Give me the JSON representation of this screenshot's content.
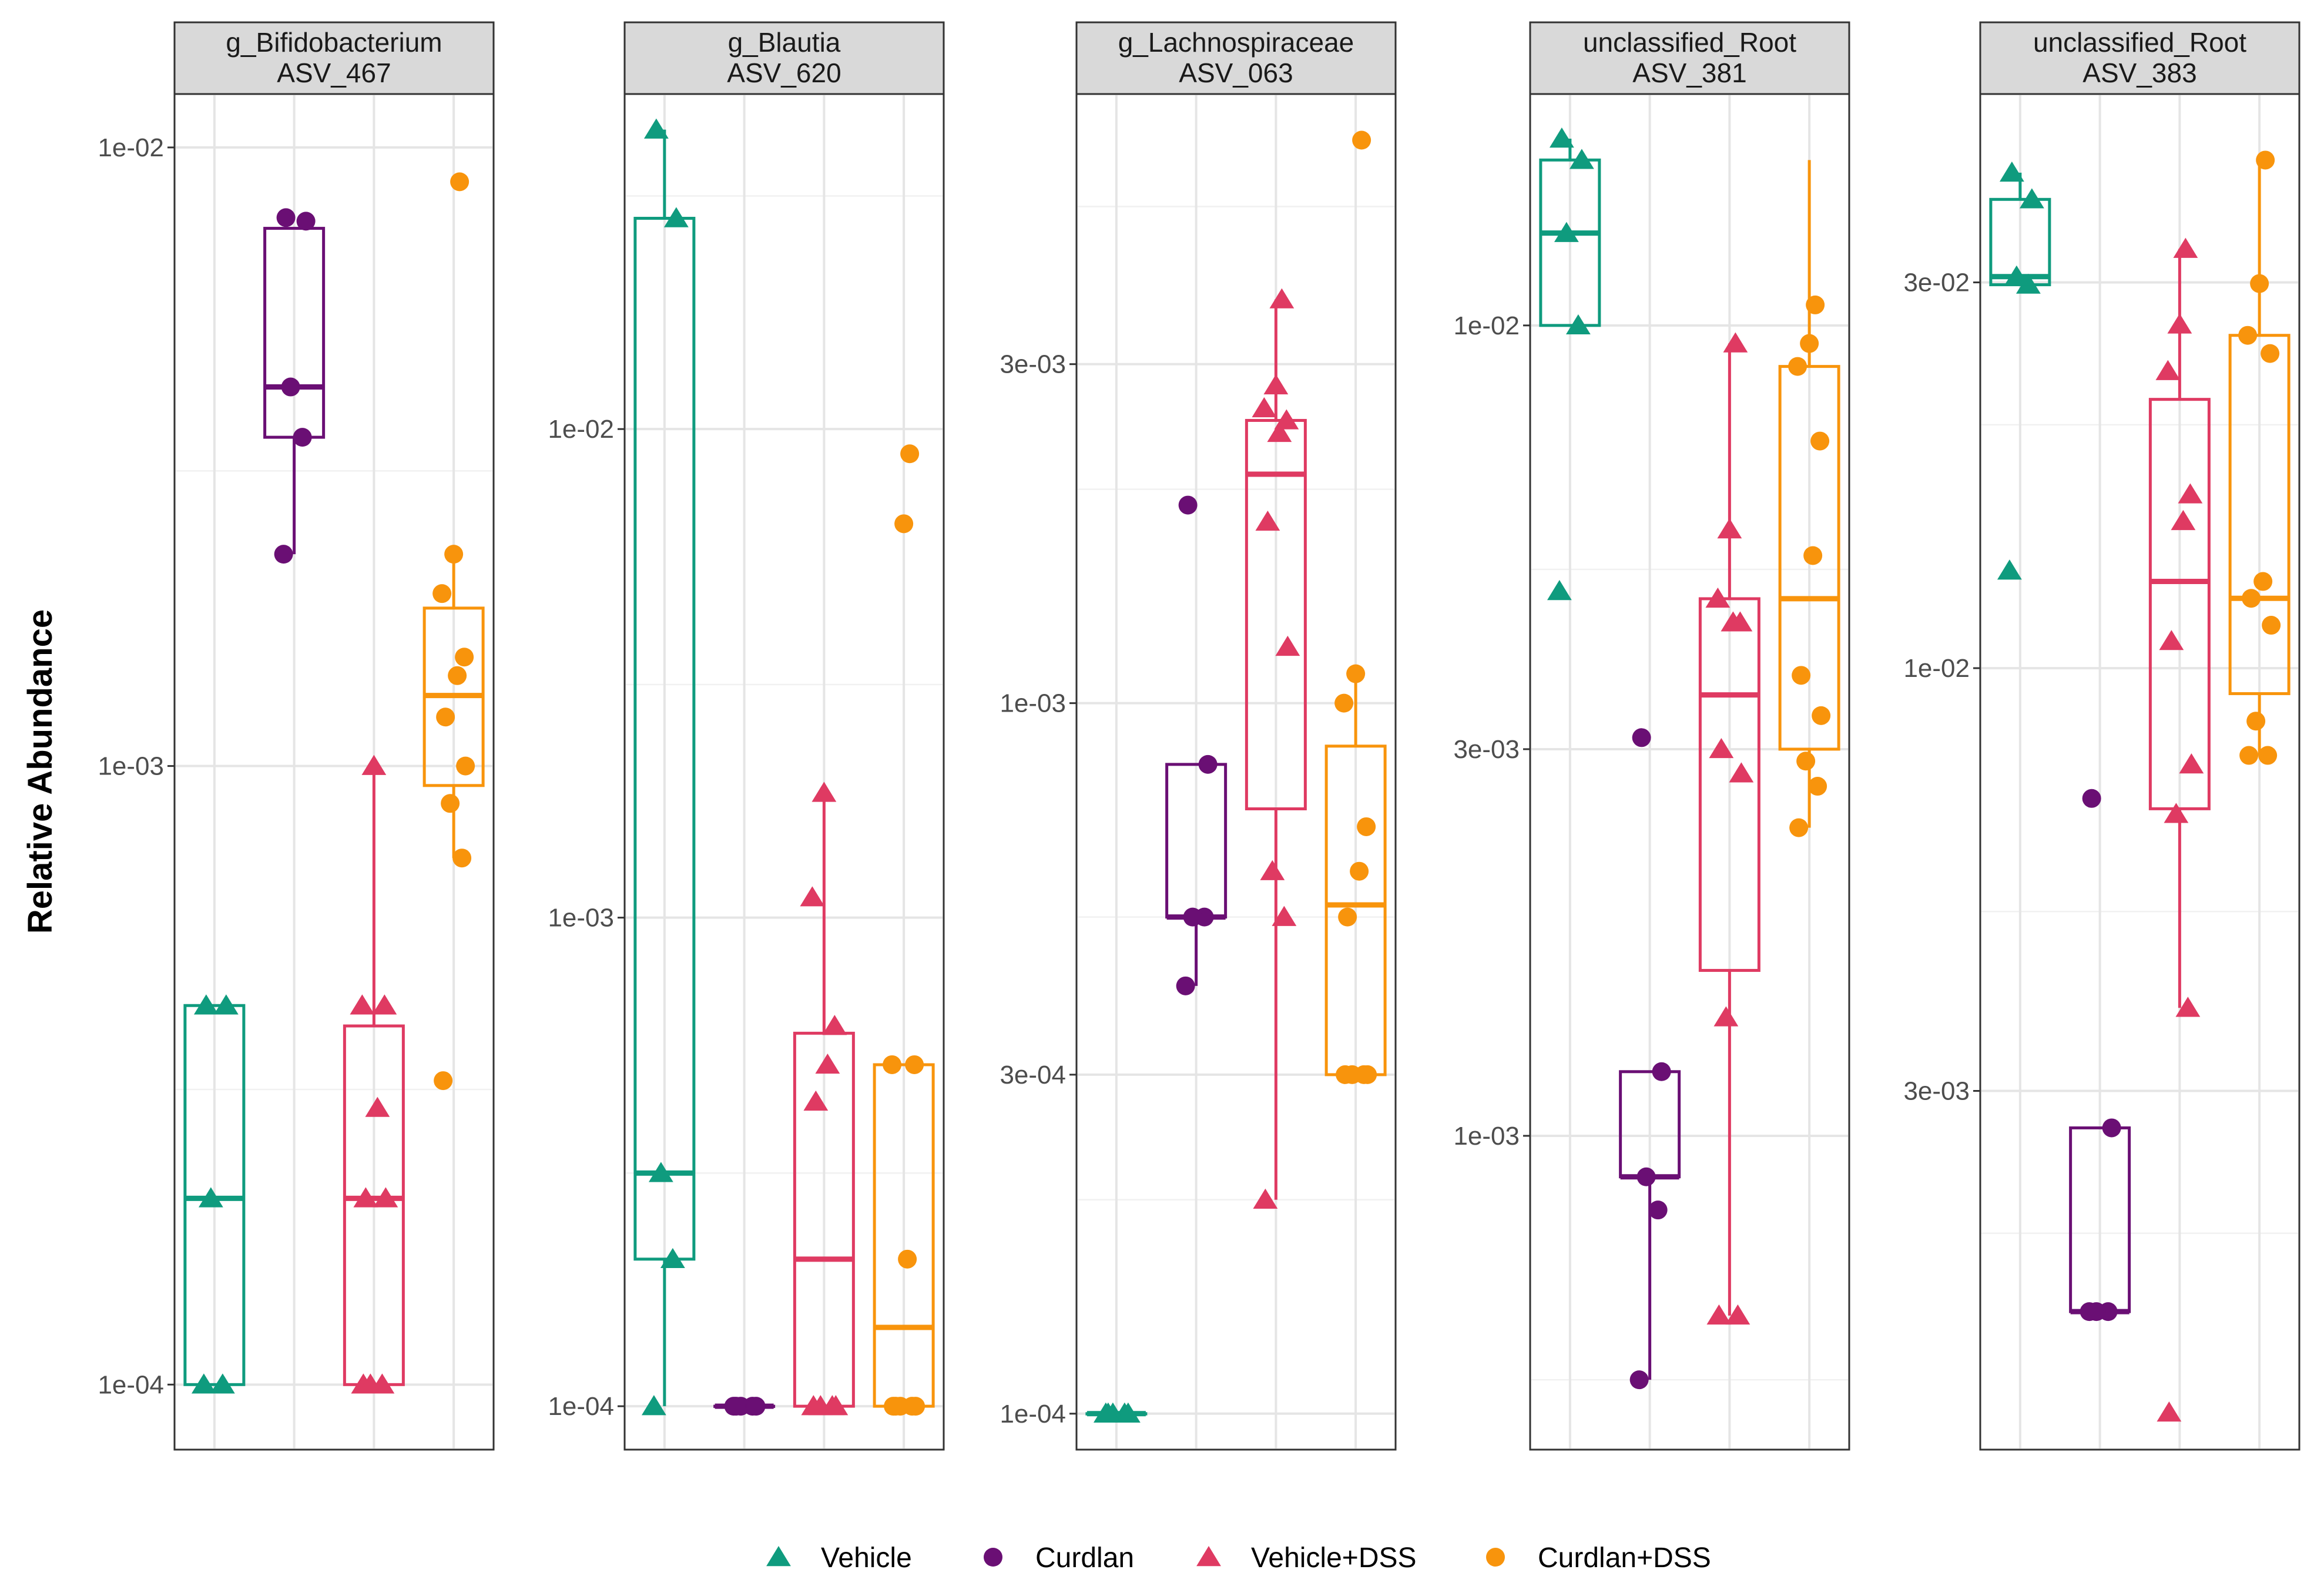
{
  "chart_data": {
    "type": "boxplot",
    "ylabel": "Relative Abundance",
    "yscale": "log10",
    "groups": [
      "Vehicle",
      "Curdlan",
      "Vehicle+DSS",
      "Curdlan+DSS"
    ],
    "colors": {
      "Vehicle": "#0f9b7e",
      "Curdlan": "#6a0f74",
      "Vehicle+DSS": "#df3a62",
      "Curdlan+DSS": "#f8940c"
    },
    "shapes": {
      "Vehicle": "triangle",
      "Curdlan": "circle",
      "Vehicle+DSS": "triangle",
      "Curdlan+DSS": "circle"
    },
    "legend": {
      "position": "bottom",
      "entries": [
        "Vehicle",
        "Curdlan",
        "Vehicle+DSS",
        "Curdlan+DSS"
      ]
    },
    "panels": [
      {
        "title_line1": "g_Bifidobacterium",
        "title_line2": "ASV_467",
        "ylim": [
          7.85e-05,
          0.0122
        ],
        "ticks": [
          {
            "value": 0.0001,
            "label": "1e-04"
          },
          {
            "value": 0.001,
            "label": "1e-03"
          },
          {
            "value": 0.01,
            "label": "1e-02"
          }
        ],
        "minor_ticks": [
          0.0003,
          0.003
        ],
        "boxes": [
          {
            "group": "Vehicle",
            "q1": 0.0001,
            "median": 0.0002,
            "q3": 0.00041,
            "whisker_low": 0.0001,
            "whisker_high": 0.00041
          },
          {
            "group": "Curdlan",
            "q1": 0.0034,
            "median": 0.0041,
            "q3": 0.0074,
            "whisker_low": 0.0022,
            "whisker_high": 0.0074
          },
          {
            "group": "Vehicle+DSS",
            "q1": 0.0001,
            "median": 0.0002,
            "q3": 0.00038,
            "whisker_low": 0.0001,
            "whisker_high": 0.001
          },
          {
            "group": "Curdlan+DSS",
            "q1": 0.00093,
            "median": 0.0013,
            "q3": 0.0018,
            "whisker_low": 0.00071,
            "whisker_high": 0.0022
          }
        ],
        "points": {
          "Vehicle": [
            0.0001,
            0.0001,
            0.0002,
            0.00041,
            0.00041
          ],
          "Curdlan": [
            0.0022,
            0.0034,
            0.0041,
            0.0076,
            0.0077
          ],
          "Vehicle+DSS": [
            0.0001,
            0.0001,
            0.0001,
            0.0002,
            0.0002,
            0.00028,
            0.00041,
            0.00041,
            0.001
          ],
          "Curdlan+DSS": [
            0.00031,
            0.00071,
            0.00087,
            0.001,
            0.0012,
            0.0014,
            0.0015,
            0.0019,
            0.0022,
            0.0088
          ]
        }
      },
      {
        "title_line1": "g_Blautia",
        "title_line2": "ASV_620",
        "ylim": [
          8.15e-05,
          0.0485
        ],
        "ticks": [
          {
            "value": 0.0001,
            "label": "1e-04"
          },
          {
            "value": 0.001,
            "label": "1e-03"
          },
          {
            "value": 0.01,
            "label": "1e-02"
          }
        ],
        "minor_ticks": [
          0.0003,
          0.003,
          0.03
        ],
        "boxes": [
          {
            "group": "Vehicle",
            "q1": 0.0002,
            "median": 0.0003,
            "q3": 0.027,
            "whisker_low": 0.0001,
            "whisker_high": 0.041
          },
          {
            "group": "Curdlan",
            "q1": 0.0001,
            "median": 0.0001,
            "q3": 0.0001,
            "whisker_low": 0.0001,
            "whisker_high": 0.0001
          },
          {
            "group": "Vehicle+DSS",
            "q1": 0.0001,
            "median": 0.0002,
            "q3": 0.00058,
            "whisker_low": 0.0001,
            "whisker_high": 0.0018
          },
          {
            "group": "Curdlan+DSS",
            "q1": 0.0001,
            "median": 0.000145,
            "q3": 0.0005,
            "whisker_low": 0.0001,
            "whisker_high": 0.0005
          }
        ],
        "points": {
          "Vehicle": [
            0.0001,
            0.0002,
            0.0003,
            0.027,
            0.041
          ],
          "Curdlan": [
            0.0001,
            0.0001,
            0.0001,
            0.0001,
            0.0001
          ],
          "Vehicle+DSS": [
            0.0001,
            0.0001,
            0.0001,
            0.0001,
            0.00042,
            0.0005,
            0.0006,
            0.0011,
            0.0018
          ],
          "Curdlan+DSS": [
            0.0001,
            0.0001,
            0.0001,
            0.0001,
            0.0001,
            0.0002,
            0.0005,
            0.0005,
            0.0064,
            0.0089
          ]
        }
      },
      {
        "title_line1": "g_Lachnospiraceae",
        "title_line2": "ASV_063",
        "ylim": [
          8.9e-05,
          0.0072
        ],
        "ticks": [
          {
            "value": 0.0001,
            "label": "1e-04"
          },
          {
            "value": 0.0003,
            "label": "3e-04"
          },
          {
            "value": 0.001,
            "label": "1e-03"
          },
          {
            "value": 0.003,
            "label": "3e-03"
          }
        ],
        "minor_ticks": [
          0.0002,
          0.0005,
          0.002,
          0.005
        ],
        "boxes": [
          {
            "group": "Vehicle",
            "q1": 0.0001,
            "median": 0.0001,
            "q3": 0.0001,
            "whisker_low": 0.0001,
            "whisker_high": 0.0001
          },
          {
            "group": "Curdlan",
            "q1": 0.0005,
            "median": 0.0005,
            "q3": 0.00082,
            "whisker_low": 0.0004,
            "whisker_high": 0.00082
          },
          {
            "group": "Vehicle+DSS",
            "q1": 0.00071,
            "median": 0.0021,
            "q3": 0.0025,
            "whisker_low": 0.0002,
            "whisker_high": 0.0037
          },
          {
            "group": "Curdlan+DSS",
            "q1": 0.0003,
            "median": 0.00052,
            "q3": 0.00087,
            "whisker_low": 0.0003,
            "whisker_high": 0.0011
          }
        ],
        "points": {
          "Vehicle": [
            0.0001,
            0.0001,
            0.0001,
            0.0001,
            0.0001
          ],
          "Curdlan": [
            0.0004,
            0.0005,
            0.0005,
            0.00082,
            0.0019
          ],
          "Vehicle+DSS": [
            0.0002,
            0.0005,
            0.00058,
            0.0012,
            0.0018,
            0.0024,
            0.0025,
            0.0026,
            0.0028,
            0.0037
          ],
          "Curdlan+DSS": [
            0.0003,
            0.0003,
            0.0003,
            0.0003,
            0.0005,
            0.00058,
            0.00067,
            0.001,
            0.0011,
            0.0062
          ]
        }
      },
      {
        "title_line1": "unclassified_Root",
        "title_line2": "ASV_381",
        "ylim": [
          0.00041,
          0.0193
        ],
        "ticks": [
          {
            "value": 0.001,
            "label": "1e-03"
          },
          {
            "value": 0.003,
            "label": "3e-03"
          },
          {
            "value": 0.01,
            "label": "1e-02"
          }
        ],
        "minor_ticks": [
          0.0005,
          0.005
        ],
        "boxes": [
          {
            "group": "Vehicle",
            "q1": 0.01,
            "median": 0.013,
            "q3": 0.016,
            "whisker_low": 0.01,
            "whisker_high": 0.017
          },
          {
            "group": "Curdlan",
            "q1": 0.00089,
            "median": 0.00089,
            "q3": 0.0012,
            "whisker_low": 0.0005,
            "whisker_high": 0.0012
          },
          {
            "group": "Vehicle+DSS",
            "q1": 0.0016,
            "median": 0.0035,
            "q3": 0.0046,
            "whisker_low": 0.0006,
            "whisker_high": 0.0095
          },
          {
            "group": "Curdlan+DSS",
            "q1": 0.003,
            "median": 0.0046,
            "q3": 0.0089,
            "whisker_low": 0.0024,
            "whisker_high": 0.016
          }
        ],
        "points": {
          "Vehicle": [
            0.0047,
            0.01,
            0.013,
            0.016,
            0.017
          ],
          "Curdlan": [
            0.0005,
            0.00081,
            0.00089,
            0.0012,
            0.0031
          ],
          "Vehicle+DSS": [
            0.0006,
            0.0006,
            0.0014,
            0.0028,
            0.003,
            0.0043,
            0.0043,
            0.0046,
            0.0056,
            0.0095
          ],
          "Curdlan+DSS": [
            0.0024,
            0.0027,
            0.0029,
            0.0033,
            0.0037,
            0.0052,
            0.0072,
            0.0089,
            0.0095,
            0.0106
          ]
        }
      },
      {
        "title_line1": "unclassified_Root",
        "title_line2": "ASV_383",
        "ylim": [
          0.00108,
          0.0513
        ],
        "ticks": [
          {
            "value": 0.003,
            "label": "3e-03"
          },
          {
            "value": 0.01,
            "label": "1e-02"
          },
          {
            "value": 0.03,
            "label": "3e-02"
          }
        ],
        "minor_ticks": [
          0.002,
          0.005,
          0.02
        ],
        "boxes": [
          {
            "group": "Vehicle",
            "q1": 0.0298,
            "median": 0.0305,
            "q3": 0.038,
            "whisker_low": 0.0298,
            "whisker_high": 0.041
          },
          {
            "group": "Curdlan",
            "q1": 0.0016,
            "median": 0.0016,
            "q3": 0.0027,
            "whisker_low": 0.0016,
            "whisker_high": 0.0027
          },
          {
            "group": "Vehicle+DSS",
            "q1": 0.0067,
            "median": 0.0128,
            "q3": 0.0215,
            "whisker_low": 0.0038,
            "whisker_high": 0.033
          },
          {
            "group": "Curdlan+DSS",
            "q1": 0.0093,
            "median": 0.0122,
            "q3": 0.0258,
            "whisker_low": 0.0078,
            "whisker_high": 0.0425
          }
        ],
        "points": {
          "Vehicle": [
            0.0132,
            0.0298,
            0.0305,
            0.038,
            0.041
          ],
          "Curdlan": [
            0.0016,
            0.0016,
            0.0016,
            0.0027,
            0.0069
          ],
          "Vehicle+DSS": [
            0.0012,
            0.0038,
            0.0066,
            0.0076,
            0.0108,
            0.0152,
            0.0164,
            0.0233,
            0.0266,
            0.033
          ],
          "Curdlan+DSS": [
            0.0078,
            0.0078,
            0.0086,
            0.0113,
            0.0122,
            0.0128,
            0.0245,
            0.0258,
            0.0299,
            0.0425
          ]
        }
      }
    ]
  }
}
